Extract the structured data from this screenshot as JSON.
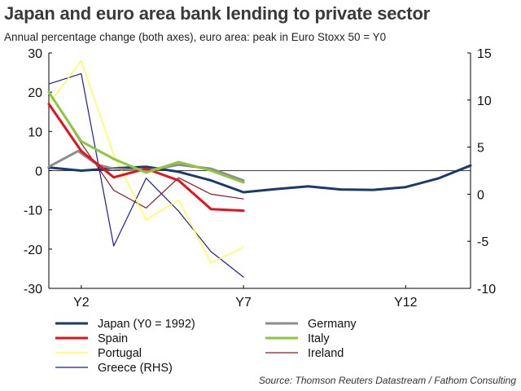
{
  "title": "Japan and euro area bank lending to private sector",
  "subtitle": "Annual percentage change (both axes), euro area: peak in Euro Stoxx 50 = Y0",
  "source": "Source: Thomson Reuters Datastream / Fathom Consulting",
  "chart_data": {
    "type": "line",
    "title": "Japan and euro area bank lending to private sector",
    "x": [
      1,
      2,
      3,
      4,
      5,
      6,
      7,
      8,
      9,
      10,
      11,
      12,
      13,
      14
    ],
    "x_tick_labels": [
      {
        "x": 2,
        "label": "Y2"
      },
      {
        "x": 7,
        "label": "Y7"
      },
      {
        "x": 12,
        "label": "Y12"
      }
    ],
    "xlim": [
      1,
      14
    ],
    "ylim_left": [
      -30,
      30
    ],
    "yticks_left": [
      30,
      20,
      10,
      0,
      -10,
      -20,
      -30
    ],
    "ylim_right": [
      -10,
      15
    ],
    "yticks_right": [
      15,
      10,
      5,
      0,
      -5,
      -10
    ],
    "zero_line": true,
    "grid": false,
    "legend_position": "bottom",
    "series": [
      {
        "name": "Japan (Y0 = 1992)",
        "color": "#1a3a6b",
        "width": 3,
        "axis": "left",
        "points": [
          [
            1,
            0.8
          ],
          [
            2,
            0
          ],
          [
            3,
            0.6
          ],
          [
            4,
            1
          ],
          [
            5,
            -0.3
          ],
          [
            6,
            -2.5
          ],
          [
            7,
            -5.5
          ],
          [
            8,
            -4.7
          ],
          [
            9,
            -4
          ],
          [
            10,
            -4.8
          ],
          [
            11,
            -4.9
          ],
          [
            12,
            -4.2
          ],
          [
            13,
            -2
          ],
          [
            14,
            1.3
          ]
        ]
      },
      {
        "name": "Germany",
        "color": "#8c8c8c",
        "width": 3,
        "axis": "left",
        "points": [
          [
            1,
            1
          ],
          [
            1.9,
            5
          ],
          [
            2.5,
            1.5
          ],
          [
            3,
            0.5
          ],
          [
            4,
            0
          ],
          [
            5,
            1.5
          ],
          [
            6,
            0.5
          ],
          [
            7,
            -2.5
          ]
        ]
      },
      {
        "name": "Spain",
        "color": "#e8101a",
        "width": 3,
        "axis": "left",
        "points": [
          [
            1,
            17
          ],
          [
            2,
            5
          ],
          [
            3,
            -1.7
          ],
          [
            4,
            0.5
          ],
          [
            5,
            -2.5
          ],
          [
            6,
            -9.8
          ],
          [
            7,
            -10.2
          ]
        ]
      },
      {
        "name": "Italy",
        "color": "#8dc63f",
        "width": 3,
        "axis": "left",
        "points": [
          [
            1,
            20
          ],
          [
            2,
            7.5
          ],
          [
            3,
            3
          ],
          [
            4,
            -0.5
          ],
          [
            5,
            2.2
          ],
          [
            6,
            0
          ],
          [
            7,
            -3
          ]
        ]
      },
      {
        "name": "Portugal",
        "color": "#ffff33",
        "width": 1.3,
        "axis": "left",
        "points": [
          [
            1,
            17
          ],
          [
            2,
            28
          ],
          [
            3,
            4
          ],
          [
            4,
            -12.5
          ],
          [
            5,
            -7.5
          ],
          [
            6,
            -23.5
          ],
          [
            7,
            -19.5
          ]
        ]
      },
      {
        "name": "Ireland",
        "color": "#8b1a1a",
        "width": 1.2,
        "axis": "left",
        "points": [
          [
            1,
            20
          ],
          [
            2,
            7
          ],
          [
            3,
            -5
          ],
          [
            4,
            -9.5
          ],
          [
            5,
            -1.8
          ],
          [
            6,
            -6
          ],
          [
            7,
            -7.2
          ]
        ]
      },
      {
        "name": "Greece (RHS)",
        "color": "#1c1ca6",
        "width": 1.2,
        "axis": "right",
        "points": [
          [
            1,
            11.7
          ],
          [
            2,
            12.8
          ],
          [
            3,
            -5.5
          ],
          [
            4,
            1.7
          ],
          [
            5,
            -1.8
          ],
          [
            6,
            -6.1
          ],
          [
            7,
            -8.8
          ]
        ]
      }
    ]
  }
}
